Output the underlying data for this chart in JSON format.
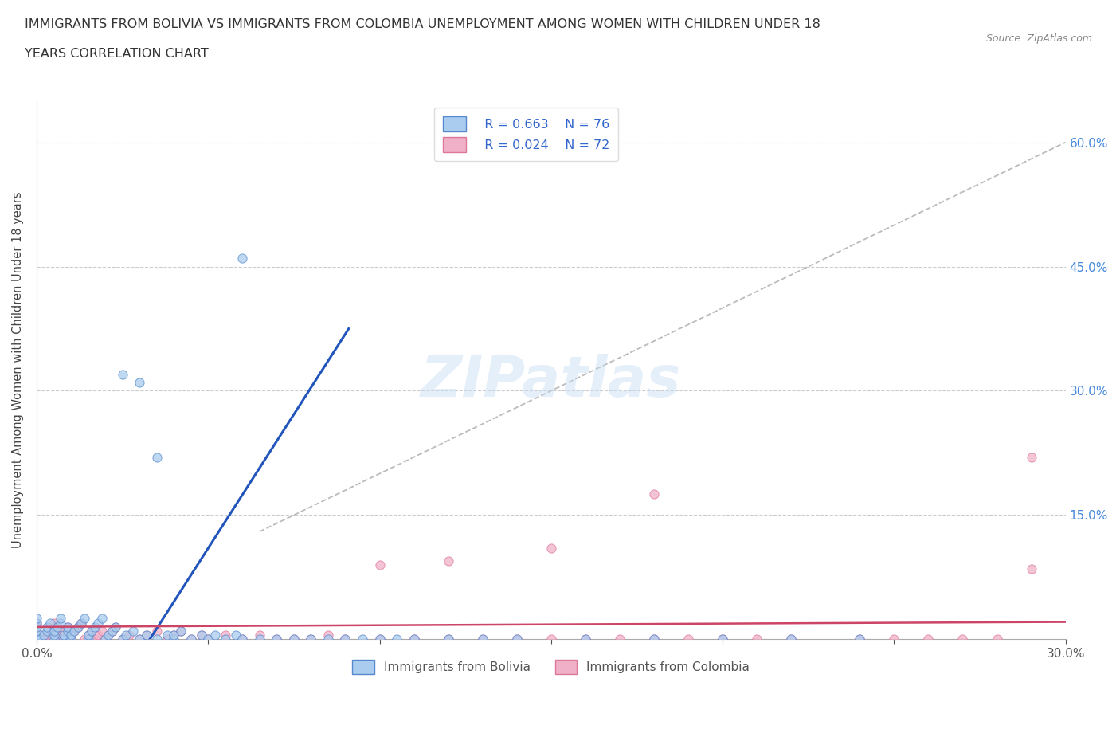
{
  "title_line1": "IMMIGRANTS FROM BOLIVIA VS IMMIGRANTS FROM COLOMBIA UNEMPLOYMENT AMONG WOMEN WITH CHILDREN UNDER 18",
  "title_line2": "YEARS CORRELATION CHART",
  "source": "Source: ZipAtlas.com",
  "ylabel": "Unemployment Among Women with Children Under 18 years",
  "xlim": [
    0.0,
    0.3
  ],
  "ylim": [
    0.0,
    0.65
  ],
  "xtick_vals": [
    0.0,
    0.05,
    0.1,
    0.15,
    0.2,
    0.25,
    0.3
  ],
  "xticklabels": [
    "0.0%",
    "",
    "",
    "",
    "",
    "",
    "30.0%"
  ],
  "ytick_vals": [
    0.0,
    0.15,
    0.3,
    0.45,
    0.6
  ],
  "yticklabels_right": [
    "",
    "15.0%",
    "30.0%",
    "45.0%",
    "60.0%"
  ],
  "bolivia_color": "#aaccee",
  "colombia_color": "#f0b0c8",
  "bolivia_edge_color": "#5588cc",
  "colombia_edge_color": "#dd7799",
  "bolivia_line_color": "#2255bb",
  "colombia_line_color": "#cc4466",
  "ref_line_color": "#aaaaaa",
  "legend_r1": "R = 0.663",
  "legend_n1": "N = 76",
  "legend_r2": "R = 0.024",
  "legend_n2": "N = 72",
  "watermark": "ZIPatlas",
  "bolivia_line_x": [
    0.033,
    0.091
  ],
  "bolivia_line_y": [
    0.0,
    0.375
  ],
  "colombia_line_x": [
    0.0,
    0.3
  ],
  "colombia_line_y": [
    0.015,
    0.021
  ],
  "ref_line_x": [
    0.065,
    0.3
  ],
  "ref_line_y": [
    0.13,
    0.6
  ],
  "legend_label1": "Immigrants from Bolivia",
  "legend_label2": "Immigrants from Colombia",
  "bolivia_x": [
    0.0,
    0.0,
    0.0,
    0.0,
    0.0,
    0.0,
    0.001,
    0.002,
    0.003,
    0.003,
    0.004,
    0.005,
    0.005,
    0.005,
    0.006,
    0.007,
    0.007,
    0.008,
    0.008,
    0.009,
    0.009,
    0.01,
    0.01,
    0.011,
    0.012,
    0.013,
    0.014,
    0.015,
    0.015,
    0.016,
    0.017,
    0.018,
    0.019,
    0.02,
    0.021,
    0.022,
    0.023,
    0.025,
    0.026,
    0.028,
    0.03,
    0.032,
    0.035,
    0.038,
    0.04,
    0.04,
    0.042,
    0.045,
    0.048,
    0.05,
    0.052,
    0.055,
    0.058,
    0.06,
    0.065,
    0.07,
    0.075,
    0.08,
    0.085,
    0.09,
    0.095,
    0.1,
    0.105,
    0.11,
    0.12,
    0.13,
    0.14,
    0.16,
    0.18,
    0.2,
    0.22,
    0.24,
    0.06,
    0.025,
    0.03,
    0.035
  ],
  "bolivia_y": [
    0.0,
    0.005,
    0.01,
    0.015,
    0.02,
    0.025,
    0.0,
    0.005,
    0.01,
    0.015,
    0.02,
    0.0,
    0.005,
    0.01,
    0.015,
    0.02,
    0.025,
    0.0,
    0.005,
    0.01,
    0.015,
    0.0,
    0.005,
    0.01,
    0.015,
    0.02,
    0.025,
    0.0,
    0.005,
    0.01,
    0.015,
    0.02,
    0.025,
    0.0,
    0.005,
    0.01,
    0.015,
    0.0,
    0.005,
    0.01,
    0.0,
    0.005,
    0.0,
    0.005,
    0.0,
    0.005,
    0.01,
    0.0,
    0.005,
    0.0,
    0.005,
    0.0,
    0.005,
    0.0,
    0.0,
    0.0,
    0.0,
    0.0,
    0.0,
    0.0,
    0.0,
    0.0,
    0.0,
    0.0,
    0.0,
    0.0,
    0.0,
    0.0,
    0.0,
    0.0,
    0.0,
    0.0,
    0.46,
    0.32,
    0.31,
    0.22
  ],
  "colombia_x": [
    0.0,
    0.0,
    0.0,
    0.0,
    0.0,
    0.002,
    0.003,
    0.004,
    0.005,
    0.005,
    0.006,
    0.007,
    0.008,
    0.009,
    0.01,
    0.01,
    0.011,
    0.012,
    0.013,
    0.014,
    0.015,
    0.016,
    0.017,
    0.018,
    0.019,
    0.02,
    0.021,
    0.022,
    0.023,
    0.025,
    0.027,
    0.03,
    0.032,
    0.035,
    0.038,
    0.04,
    0.042,
    0.045,
    0.048,
    0.05,
    0.055,
    0.06,
    0.065,
    0.07,
    0.075,
    0.08,
    0.085,
    0.09,
    0.1,
    0.11,
    0.12,
    0.13,
    0.14,
    0.15,
    0.16,
    0.17,
    0.18,
    0.19,
    0.2,
    0.21,
    0.22,
    0.24,
    0.25,
    0.26,
    0.27,
    0.28,
    0.29,
    0.29,
    0.18,
    0.15,
    0.12,
    0.1
  ],
  "colombia_y": [
    0.0,
    0.005,
    0.01,
    0.015,
    0.02,
    0.0,
    0.005,
    0.01,
    0.015,
    0.02,
    0.0,
    0.005,
    0.01,
    0.015,
    0.0,
    0.005,
    0.01,
    0.015,
    0.02,
    0.0,
    0.005,
    0.01,
    0.0,
    0.005,
    0.01,
    0.0,
    0.005,
    0.01,
    0.015,
    0.0,
    0.005,
    0.0,
    0.005,
    0.01,
    0.0,
    0.005,
    0.01,
    0.0,
    0.005,
    0.0,
    0.005,
    0.0,
    0.005,
    0.0,
    0.0,
    0.0,
    0.005,
    0.0,
    0.0,
    0.0,
    0.0,
    0.0,
    0.0,
    0.0,
    0.0,
    0.0,
    0.0,
    0.0,
    0.0,
    0.0,
    0.0,
    0.0,
    0.0,
    0.0,
    0.0,
    0.0,
    0.085,
    0.22,
    0.175,
    0.11,
    0.095,
    0.09
  ]
}
